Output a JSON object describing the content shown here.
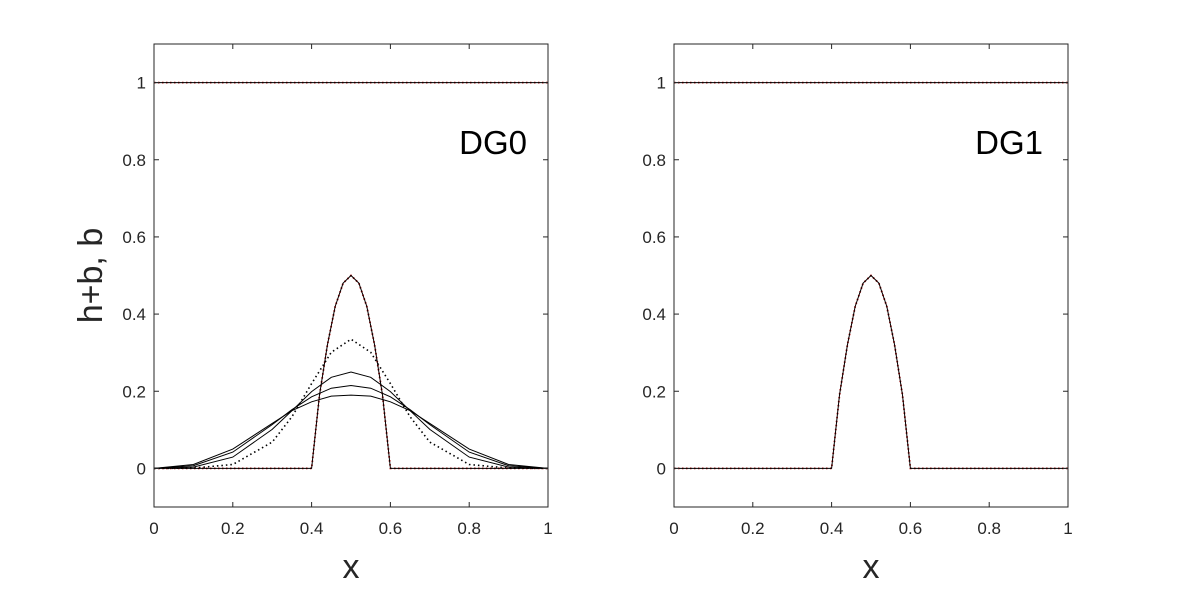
{
  "chart_data": [
    {
      "type": "line",
      "panel_label": "DG0",
      "xlabel": "x",
      "ylabel": "h+b, b",
      "xlim": [
        0,
        1
      ],
      "ylim": [
        -0.1,
        1.1
      ],
      "xticks": [
        "0",
        "0.2",
        "0.4",
        "0.6",
        "0.8",
        "1"
      ],
      "yticks": [
        "0",
        "0.2",
        "0.4",
        "0.6",
        "0.8",
        "1"
      ],
      "grid": false,
      "series": [
        {
          "style": "red-dotted",
          "color": "#c00000",
          "x": [
            0,
            1
          ],
          "y": [
            1,
            1
          ]
        },
        {
          "style": "red-dotted",
          "color": "#c00000",
          "x": [
            0,
            0.4,
            0.42,
            0.44,
            0.46,
            0.48,
            0.5,
            0.52,
            0.54,
            0.56,
            0.58,
            0.6,
            1
          ],
          "y": [
            0,
            0,
            0.19,
            0.32,
            0.42,
            0.48,
            0.5,
            0.48,
            0.42,
            0.32,
            0.19,
            0,
            0
          ]
        },
        {
          "style": "black-solid",
          "color": "#000000",
          "x": [
            0,
            1
          ],
          "y": [
            1,
            1
          ]
        },
        {
          "style": "black-solid",
          "color": "#000000",
          "x": [
            0,
            0.4,
            0.42,
            0.44,
            0.46,
            0.48,
            0.5,
            0.52,
            0.54,
            0.56,
            0.58,
            0.6,
            1
          ],
          "y": [
            0,
            0,
            0.19,
            0.32,
            0.42,
            0.48,
            0.5,
            0.48,
            0.42,
            0.32,
            0.19,
            0,
            0
          ]
        },
        {
          "style": "black-dotted",
          "color": "#000000",
          "x": [
            0,
            0.1,
            0.2,
            0.3,
            0.35,
            0.4,
            0.45,
            0.5,
            0.55,
            0.6,
            0.65,
            0.7,
            0.8,
            0.9,
            1
          ],
          "y": [
            0,
            0.0007,
            0.0102,
            0.0683,
            0.1338,
            0.2198,
            0.301,
            0.335,
            0.301,
            0.2198,
            0.1338,
            0.0683,
            0.0102,
            0.0007,
            0
          ]
        },
        {
          "style": "black-solid",
          "color": "#000000",
          "x": [
            0,
            0.1,
            0.2,
            0.3,
            0.35,
            0.4,
            0.45,
            0.5,
            0.55,
            0.6,
            0.65,
            0.7,
            0.8,
            0.9,
            1
          ],
          "y": [
            0,
            0.0035,
            0.0293,
            0.1012,
            0.1497,
            0.1992,
            0.2362,
            0.25,
            0.2362,
            0.1992,
            0.1497,
            0.1012,
            0.0293,
            0.0035,
            0
          ]
        },
        {
          "style": "black-solid",
          "color": "#000000",
          "x": [
            0,
            0.1,
            0.2,
            0.3,
            0.35,
            0.4,
            0.45,
            0.5,
            0.55,
            0.6,
            0.65,
            0.7,
            0.8,
            0.9,
            1
          ],
          "y": [
            0,
            0.007,
            0.0422,
            0.1136,
            0.1522,
            0.1855,
            0.2078,
            0.215,
            0.2078,
            0.1855,
            0.1522,
            0.1136,
            0.0422,
            0.007,
            0
          ]
        },
        {
          "style": "black-solid",
          "color": "#000000",
          "x": [
            0,
            0.1,
            0.2,
            0.3,
            0.35,
            0.4,
            0.45,
            0.5,
            0.55,
            0.6,
            0.65,
            0.7,
            0.8,
            0.9,
            1
          ],
          "y": [
            0,
            0.0102,
            0.05,
            0.1167,
            0.1497,
            0.1727,
            0.1874,
            0.19,
            0.1874,
            0.1727,
            0.1497,
            0.1167,
            0.05,
            0.0102,
            0
          ]
        }
      ]
    },
    {
      "type": "line",
      "panel_label": "DG1",
      "xlabel": "x",
      "ylabel": "",
      "xlim": [
        0,
        1
      ],
      "ylim": [
        -0.1,
        1.1
      ],
      "xticks": [
        "0",
        "0.2",
        "0.4",
        "0.6",
        "0.8",
        "1"
      ],
      "yticks": [
        "0",
        "0.2",
        "0.4",
        "0.6",
        "0.8",
        "1"
      ],
      "grid": false,
      "series": [
        {
          "style": "red-dotted",
          "color": "#c00000",
          "x": [
            0,
            1
          ],
          "y": [
            1,
            1
          ]
        },
        {
          "style": "red-dotted",
          "color": "#c00000",
          "x": [
            0,
            0.4,
            0.42,
            0.44,
            0.46,
            0.48,
            0.5,
            0.52,
            0.54,
            0.56,
            0.58,
            0.6,
            1
          ],
          "y": [
            0,
            0,
            0.19,
            0.32,
            0.42,
            0.48,
            0.5,
            0.48,
            0.42,
            0.32,
            0.19,
            0,
            0
          ]
        },
        {
          "style": "black-solid",
          "color": "#000000",
          "x": [
            0,
            1
          ],
          "y": [
            1,
            1
          ]
        },
        {
          "style": "black-solid",
          "color": "#000000",
          "x": [
            0,
            0.4,
            0.42,
            0.44,
            0.46,
            0.48,
            0.5,
            0.52,
            0.54,
            0.56,
            0.58,
            0.6,
            1
          ],
          "y": [
            0,
            0,
            0.19,
            0.32,
            0.42,
            0.48,
            0.5,
            0.48,
            0.42,
            0.32,
            0.19,
            0,
            0
          ]
        }
      ]
    }
  ]
}
